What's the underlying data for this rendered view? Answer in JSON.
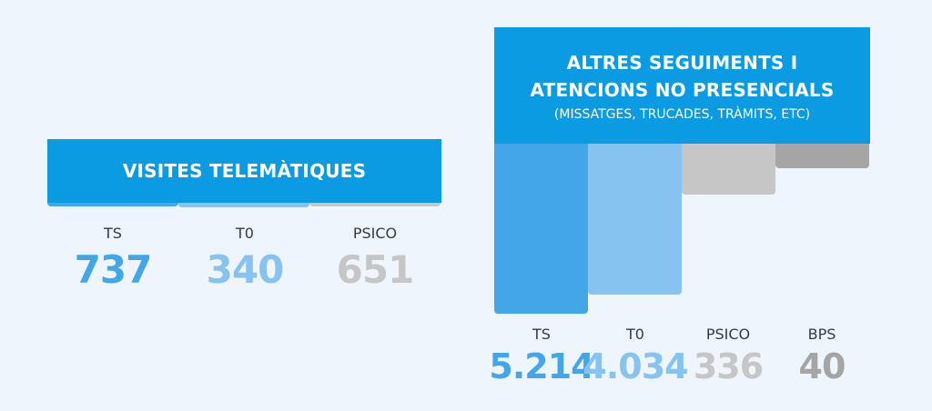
{
  "colors": {
    "banner": "#0b9be3",
    "ts": "#43a6e8",
    "t0": "#86c3f0",
    "psico": "#c6c6c6",
    "bps": "#a5a5a5",
    "label": "#333a40"
  },
  "chart_data": [
    {
      "type": "bar",
      "title": "VISITES TELEMÀTIQUES",
      "categories": [
        "TS",
        "T0",
        "PSICO"
      ],
      "values": [
        737,
        340,
        651
      ],
      "value_labels": [
        "737",
        "340",
        "651"
      ]
    },
    {
      "type": "bar",
      "title_lines": [
        "ALTRES SEGUIMENTS I",
        "ATENCIONS NO PRESENCIALS"
      ],
      "subtitle": "(MISSATGES, TRUCADES, TRÀMITS, ETC)",
      "categories": [
        "TS",
        "T0",
        "PSICO",
        "BPS"
      ],
      "values": [
        5214,
        4034,
        336,
        40
      ],
      "value_labels": [
        "5.214",
        "4.034",
        "336",
        "40"
      ]
    }
  ]
}
